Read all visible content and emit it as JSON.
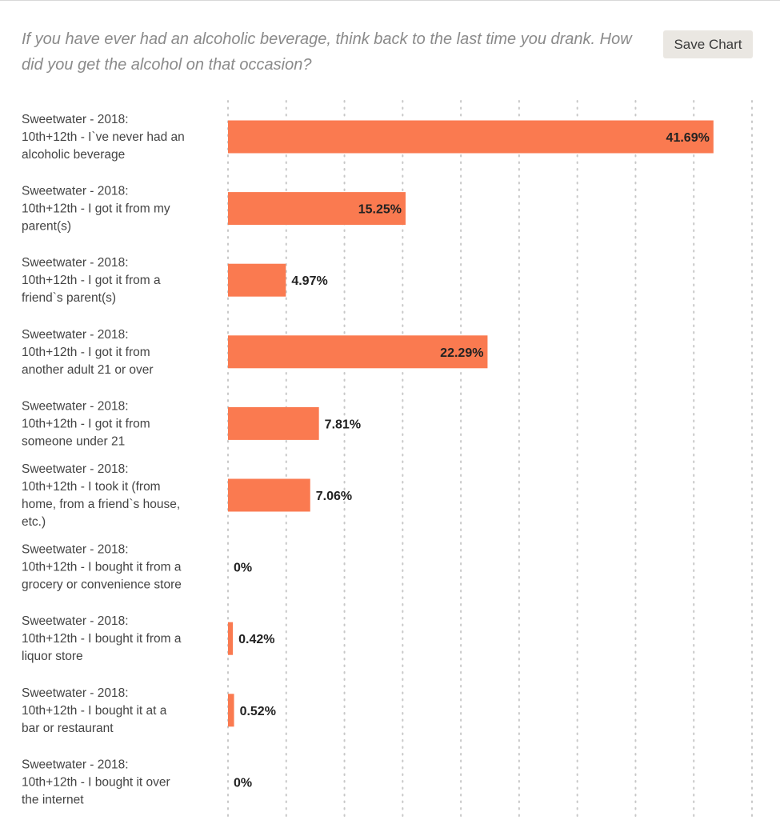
{
  "header": {
    "title": "If you have ever had an alcoholic beverage, think back to the last time you drank. How did you get the alcohol on that occasion?",
    "save_label": "Save Chart"
  },
  "colors": {
    "bar": "#fa7a50",
    "grid": "#c8c8c8",
    "label": "#444444",
    "value": "#222222"
  },
  "chart_data": {
    "type": "bar",
    "orientation": "horizontal",
    "title": "If you have ever had an alcoholic beverage, think back to the last time you drank. How did you get the alcohol on that occasion?",
    "xlabel": "",
    "ylabel": "",
    "xlim": [
      0,
      45
    ],
    "grid": true,
    "categories": [
      [
        "Sweetwater - 2018:",
        "10th+12th - I`ve never had an",
        "alcoholic beverage"
      ],
      [
        "Sweetwater - 2018:",
        "10th+12th - I got it from my",
        "parent(s)"
      ],
      [
        "Sweetwater - 2018:",
        "10th+12th - I got it from a",
        "friend`s parent(s)"
      ],
      [
        "Sweetwater - 2018:",
        "10th+12th - I got it from",
        "another adult 21 or over"
      ],
      [
        "Sweetwater - 2018:",
        "10th+12th - I got it from",
        "someone under 21"
      ],
      [
        "Sweetwater - 2018:",
        "10th+12th - I took it (from",
        "home, from a friend`s house,",
        "etc.)"
      ],
      [
        "Sweetwater - 2018:",
        "10th+12th - I bought it from a",
        "grocery or convenience store"
      ],
      [
        "Sweetwater - 2018:",
        "10th+12th - I bought it from a",
        "liquor store"
      ],
      [
        "Sweetwater - 2018:",
        "10th+12th - I bought it at a",
        "bar or restaurant"
      ],
      [
        "Sweetwater - 2018:",
        "10th+12th - I bought it over",
        "the internet"
      ]
    ],
    "values": [
      41.69,
      15.25,
      4.97,
      22.29,
      7.81,
      7.06,
      0,
      0.42,
      0.52,
      0
    ],
    "value_labels": [
      "41.69%",
      "15.25%",
      "4.97%",
      "22.29%",
      "7.81%",
      "7.06%",
      "0%",
      "0.42%",
      "0.52%",
      "0%"
    ]
  }
}
